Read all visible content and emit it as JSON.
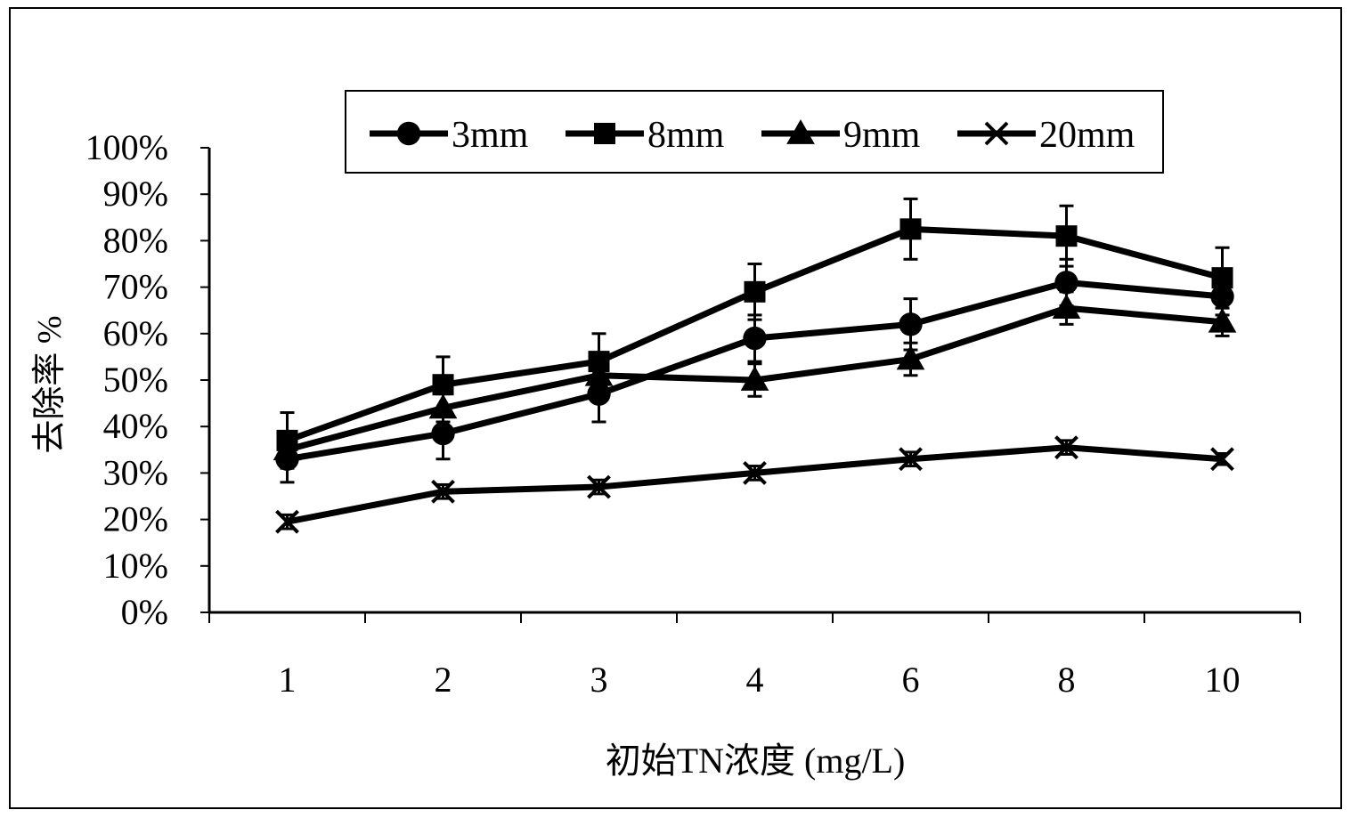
{
  "chart_data": {
    "type": "line",
    "title": "",
    "xlabel": "初始TN浓度 (mg/L)",
    "ylabel": "去除率 %",
    "categories": [
      "1",
      "2",
      "3",
      "4",
      "6",
      "8",
      "10"
    ],
    "yticks": [
      "0%",
      "10%",
      "20%",
      "30%",
      "40%",
      "50%",
      "60%",
      "70%",
      "80%",
      "90%",
      "100%"
    ],
    "ylim": [
      0,
      100
    ],
    "grid": false,
    "legend_position": "top",
    "series": [
      {
        "name": "3mm",
        "marker": "circle",
        "values": [
          33,
          38.5,
          47,
          59,
          62,
          71,
          68
        ],
        "errors": [
          5,
          5.5,
          6,
          5,
          5.5,
          5,
          4
        ]
      },
      {
        "name": "8mm",
        "marker": "square",
        "values": [
          37,
          49,
          54,
          69,
          82.5,
          81,
          72
        ],
        "errors": [
          6,
          6,
          6,
          6,
          6.5,
          6.5,
          6.5
        ]
      },
      {
        "name": "9mm",
        "marker": "triangle",
        "values": [
          35,
          44,
          51,
          50,
          54.5,
          65.5,
          62.5
        ],
        "errors": [
          3,
          3,
          3,
          3.5,
          3.5,
          3.5,
          3
        ]
      },
      {
        "name": "20mm",
        "marker": "x",
        "values": [
          19.5,
          26,
          27,
          30,
          33,
          35.5,
          33
        ],
        "errors": [
          1.5,
          1.5,
          1.5,
          1.5,
          1.5,
          1.5,
          1.2
        ]
      }
    ]
  }
}
